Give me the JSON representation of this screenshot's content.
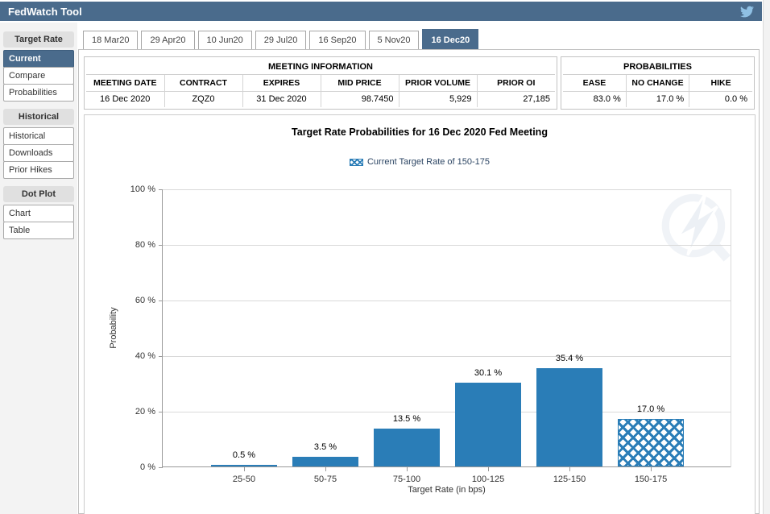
{
  "header": {
    "title": "FedWatch Tool"
  },
  "sidebar": {
    "sections": [
      {
        "label": "Target Rate",
        "items": [
          {
            "label": "Current",
            "selected": true
          },
          {
            "label": "Compare"
          },
          {
            "label": "Probabilities"
          }
        ]
      },
      {
        "label": "Historical",
        "items": [
          {
            "label": "Historical"
          },
          {
            "label": "Downloads"
          },
          {
            "label": "Prior Hikes"
          }
        ]
      },
      {
        "label": "Dot Plot",
        "items": [
          {
            "label": "Chart"
          },
          {
            "label": "Table"
          }
        ]
      }
    ]
  },
  "tabs": [
    {
      "label": "18 Mar20"
    },
    {
      "label": "29 Apr20"
    },
    {
      "label": "10 Jun20"
    },
    {
      "label": "29 Jul20"
    },
    {
      "label": "16 Sep20"
    },
    {
      "label": "5 Nov20"
    },
    {
      "label": "16 Dec20",
      "selected": true
    }
  ],
  "meeting_information": {
    "title": "MEETING INFORMATION",
    "columns": [
      "MEETING DATE",
      "CONTRACT",
      "EXPIRES",
      "MID PRICE",
      "PRIOR VOLUME",
      "PRIOR OI"
    ],
    "values": [
      "16 Dec 2020",
      "ZQZ0",
      "31 Dec 2020",
      "98.7450",
      "5,929",
      "27,185"
    ],
    "value_alignment": [
      "c",
      "c",
      "c",
      "r",
      "r",
      "r"
    ],
    "column_widths": [
      "21%",
      "15%",
      "17%",
      "15%",
      "18%",
      "14%"
    ]
  },
  "probabilities": {
    "title": "PROBABILITIES",
    "columns": [
      "EASE",
      "NO CHANGE",
      "HIKE"
    ],
    "values": [
      "83.0 %",
      "17.0 %",
      "0.0 %"
    ],
    "value_alignment": [
      "r",
      "r",
      "r"
    ],
    "column_widths": [
      "32%",
      "43%",
      "25%"
    ]
  },
  "chart_data": {
    "type": "bar",
    "title": "Target Rate Probabilities for 16 Dec 2020 Fed Meeting",
    "legend": "Current Target Rate of 150-175",
    "legend_position": "top",
    "categories": [
      "25-50",
      "50-75",
      "75-100",
      "100-125",
      "125-150",
      "150-175"
    ],
    "values": [
      0.5,
      3.5,
      13.5,
      30.1,
      35.4,
      17.0
    ],
    "data_labels": [
      "0.5 %",
      "3.5 %",
      "13.5 %",
      "30.1 %",
      "35.4 %",
      "17.0 %"
    ],
    "hatched_category": "150-175",
    "xlabel": "Target Rate (in bps)",
    "ylabel": "Probability",
    "ylim": [
      0,
      100
    ],
    "ytick_step": 20,
    "ytick_labels": [
      "0 %",
      "20 %",
      "40 %",
      "60 %",
      "80 %",
      "100 %"
    ],
    "grid": true
  },
  "colors": {
    "accent": "#4a6b8c",
    "bar": "#2a7db7",
    "twitter_icon": "#8fc0e4",
    "legend_text": "#2d4664"
  }
}
